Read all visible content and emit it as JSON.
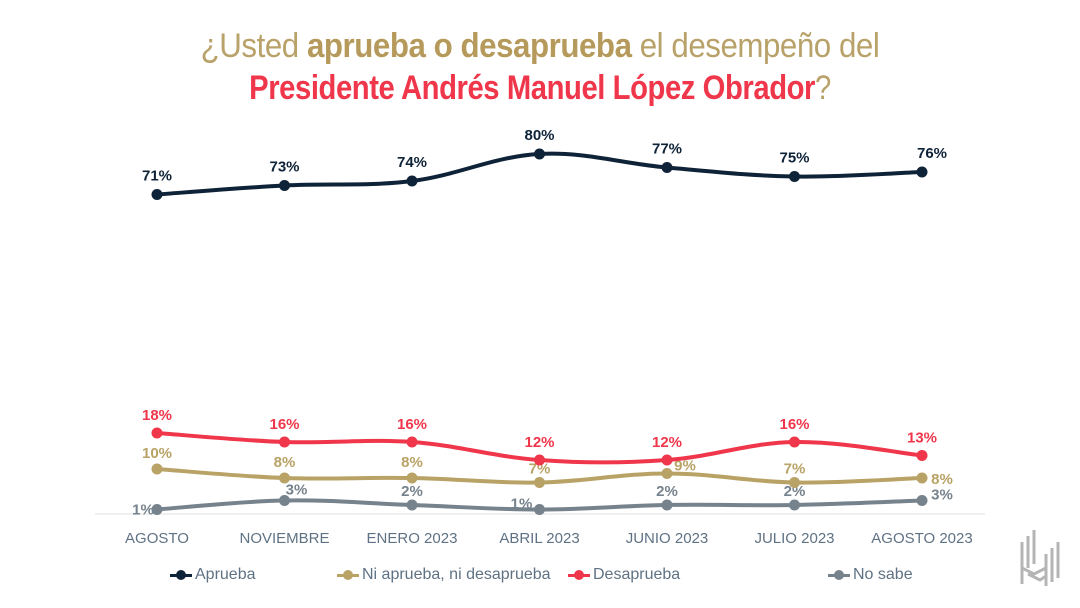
{
  "title": {
    "line1_pre": "¿Usted ",
    "line1_bold": "aprueba o desaprueba",
    "line1_post": " el desempeño del",
    "line2_main": "Presidente Andrés Manuel López Obrador",
    "line2_q": "?"
  },
  "legend": [
    {
      "label": "Aprueba",
      "color": "#0f2338"
    },
    {
      "label": "Ni aprueba, ni desaprueba",
      "color": "#b9a266"
    },
    {
      "label": "Desaprueba",
      "color": "#f0364a"
    },
    {
      "label": "No sabe",
      "color": "#76828c"
    }
  ],
  "logo": {
    "icon": "brand-logo-icon",
    "color": "#b5b5b5"
  },
  "chart_data": {
    "type": "line",
    "title": "¿Usted aprueba o desaprueba el desempeño del Presidente Andrés Manuel López Obrador?",
    "xlabel": "",
    "ylabel": "",
    "categories": [
      "AGOSTO",
      "NOVIEMBRE",
      "ENERO 2023",
      "ABRIL 2023",
      "JUNIO 2023",
      "JULIO 2023",
      "AGOSTO 2023"
    ],
    "ylim": [
      0,
      85
    ],
    "grid": false,
    "legend_position": "bottom",
    "unit": "%",
    "series": [
      {
        "name": "Aprueba",
        "color": "#0f2338",
        "values": [
          71,
          73,
          74,
          80,
          77,
          75,
          76
        ],
        "labels": [
          "71%",
          "73%",
          "74%",
          "80%",
          "77%",
          "75%",
          "76%"
        ]
      },
      {
        "name": "Ni aprueba, ni desaprueba",
        "color": "#b9a266",
        "values": [
          10,
          8,
          8,
          7,
          9,
          7,
          8
        ],
        "labels": [
          "10%",
          "8%",
          "8%",
          "7%",
          "9%",
          "7%",
          "8%"
        ]
      },
      {
        "name": "Desaprueba",
        "color": "#f0364a",
        "values": [
          18,
          16,
          16,
          12,
          12,
          16,
          13
        ],
        "labels": [
          "18%",
          "16%",
          "16%",
          "12%",
          "12%",
          "16%",
          "13%"
        ]
      },
      {
        "name": "No sabe",
        "color": "#76828c",
        "values": [
          1,
          3,
          2,
          1,
          2,
          2,
          3
        ],
        "labels": [
          "1%",
          "3%",
          "2%",
          "1%",
          "2%",
          "2%",
          "3%"
        ]
      }
    ]
  }
}
